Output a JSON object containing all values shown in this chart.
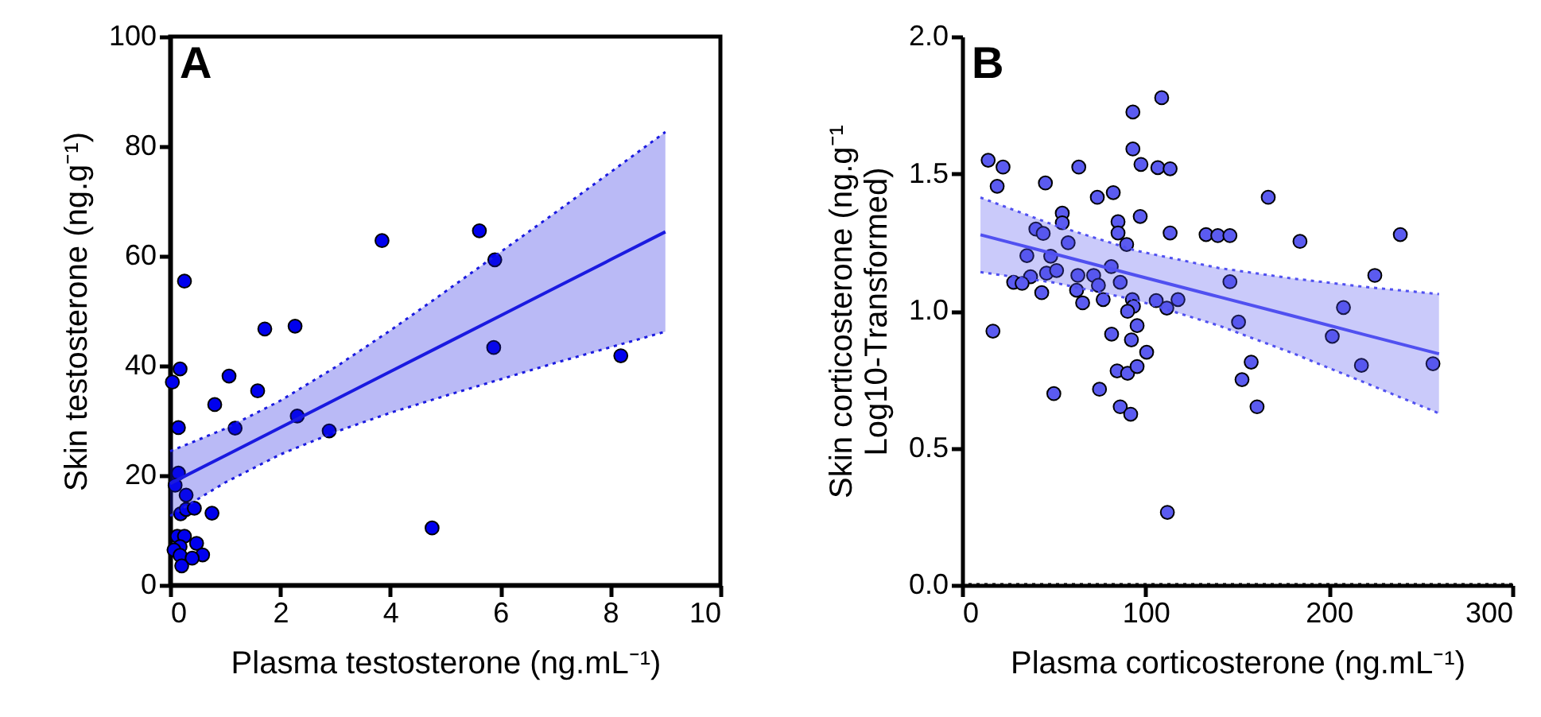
{
  "chart_data": [
    {
      "type": "scatter",
      "xlabel": "Plasma testosterone (ng.mL⁻¹)",
      "ylabel": "Skin testosterone (ng.g⁻¹)",
      "annotations": [
        "A"
      ],
      "xlim": [
        0,
        10
      ],
      "xticks": [
        0,
        2,
        4,
        6,
        8,
        10
      ],
      "ylim": [
        0,
        100
      ],
      "yticks": [
        0,
        20,
        40,
        60,
        80,
        100
      ],
      "grid": false,
      "legend": false,
      "series": [
        {
          "type": "scatter",
          "marker": "circle",
          "color": "#0000ee",
          "x": [
            0.04,
            0.18,
            0.26,
            0.15,
            0.15,
            0.09,
            0.29,
            0.19,
            0.29,
            0.44,
            0.76,
            0.13,
            0.26,
            0.18,
            0.07,
            0.18,
            0.48,
            0.59,
            0.4,
            0.21,
            0.81,
            1.07,
            1.18,
            1.59,
            1.72,
            2.27,
            2.31,
            2.89,
            3.85,
            4.76,
            5.62,
            5.9,
            5.88,
            8.19
          ],
          "values": [
            37.0,
            39.4,
            55.4,
            28.7,
            20.4,
            18.2,
            16.4,
            13.0,
            13.8,
            14.0,
            13.1,
            8.9,
            8.9,
            7.0,
            6.4,
            5.4,
            7.6,
            5.5,
            4.9,
            3.5,
            32.9,
            38.1,
            28.6,
            35.4,
            46.7,
            47.2,
            30.8,
            28.1,
            62.8,
            10.4,
            64.6,
            59.3,
            43.3,
            41.8
          ]
        },
        {
          "type": "line",
          "marker": "none",
          "line_style": "solid",
          "color": "#1a1ae0",
          "x": [
            0,
            1,
            2,
            3,
            4,
            5,
            6,
            7,
            8,
            9
          ],
          "values": [
            18.5,
            23.6,
            28.7,
            33.8,
            38.9,
            44.0,
            49.1,
            54.2,
            59.3,
            64.4
          ],
          "lower": [
            12.6,
            18.7,
            23.8,
            27.9,
            31.4,
            34.5,
            37.5,
            40.5,
            43.35,
            46.2
          ],
          "upper": [
            24.4,
            28.5,
            33.6,
            39.7,
            46.4,
            53.5,
            60.7,
            67.9,
            75.25,
            82.6
          ]
        },
        {
          "type": "line",
          "marker": "none",
          "line_style": "dotted",
          "color": "#1a1ae0",
          "x": [
            0,
            1,
            2,
            3,
            4,
            5,
            6,
            7,
            8,
            9
          ],
          "values": [
            12.6,
            18.7,
            23.8,
            27.9,
            31.4,
            34.5,
            37.5,
            40.5,
            43.35,
            46.2
          ]
        },
        {
          "type": "line",
          "marker": "none",
          "line_style": "dotted",
          "color": "#1a1ae0",
          "x": [
            0,
            1,
            2,
            3,
            4,
            5,
            6,
            7,
            8,
            9
          ],
          "values": [
            24.4,
            28.5,
            33.6,
            39.7,
            46.4,
            53.5,
            60.7,
            67.9,
            75.25,
            82.6
          ]
        }
      ]
    },
    {
      "type": "scatter",
      "xlabel": "Plasma corticosterone (ng.mL⁻¹)",
      "ylabel": "Skin corticosterone (ng.g⁻¹\nLog10-Transformed)",
      "annotations": [
        "B"
      ],
      "xlim": [
        0,
        300
      ],
      "xticks": [
        0,
        100,
        200,
        300
      ],
      "ylim": [
        0,
        2
      ],
      "yticks": [
        {
          "value": 0,
          "label": "0.0"
        },
        {
          "value": 0.5,
          "label": "0.5"
        },
        {
          "value": 1,
          "label": "1.0"
        },
        {
          "value": 1.5,
          "label": "1.5"
        },
        {
          "value": 2,
          "label": "2.0"
        }
      ],
      "grid": false,
      "legend": false,
      "ref_lines": [
        {
          "axis": "y",
          "value": 0,
          "color": "#000000",
          "line_style": "dotted"
        }
      ],
      "series": [
        {
          "type": "scatter",
          "marker": "circle",
          "color": "#5b5bf0",
          "x": [
            14.2,
            22.3,
            19.1,
            16.8,
            45.4,
            63.6,
            93.1,
            97.5,
            106.7,
            113.4,
            73.7,
            82.4,
            54.6,
            54.6,
            85.0,
            85.0,
            97.1,
            113.4,
            166.9,
            133.0,
            139.4,
            146.0,
            184.2,
            238.9,
            40.2,
            44.2,
            57.8,
            89.7,
            35.3,
            48.3,
            46.0,
            51.5,
            37.3,
            28.1,
            32.7,
            43.4,
            63.1,
            71.7,
            62.4,
            74.3,
            81.3,
            86.2,
            65.7,
            76.9,
            92.8,
            93.4,
            90.2,
            105.8,
            111.6,
            117.7,
            146.0,
            95.4,
            81.5,
            92.3,
            100.6,
            150.7,
            84.5,
            90.2,
            95.4,
            74.9,
            50.0,
            86.2,
            91.9,
            157.6,
            152.6,
            160.8,
            207.9,
            201.8,
            217.7,
            225.0,
            256.7,
            111.9,
            93.1,
            108.8
          ],
          "values": [
            1.549,
            1.524,
            1.454,
            0.926,
            1.466,
            1.524,
            1.59,
            1.534,
            1.522,
            1.518,
            1.414,
            1.431,
            1.356,
            1.321,
            1.325,
            1.284,
            1.344,
            1.284,
            1.414,
            1.278,
            1.274,
            1.274,
            1.253,
            1.278,
            1.298,
            1.282,
            1.248,
            1.242,
            1.201,
            1.199,
            1.137,
            1.147,
            1.124,
            1.104,
            1.1,
            1.066,
            1.129,
            1.129,
            1.075,
            1.093,
            1.161,
            1.104,
            1.029,
            1.041,
            1.041,
            1.016,
            0.998,
            1.037,
            1.01,
            1.041,
            1.106,
            0.946,
            0.915,
            0.894,
            0.849,
            0.959,
            0.781,
            0.772,
            0.797,
            0.714,
            0.698,
            0.65,
            0.623,
            0.813,
            0.749,
            0.65,
            1.012,
            0.907,
            0.801,
            1.129,
            0.807,
            0.265,
            1.725,
            1.777
          ]
        },
        {
          "type": "line",
          "marker": "none",
          "line_style": "solid",
          "color": "#5050f0",
          "x": [
            10,
            50,
            95,
            140,
            180,
            220,
            260
          ],
          "values": [
            1.277,
            1.208,
            1.129,
            1.051,
            0.982,
            0.912,
            0.843
          ],
          "lower": [
            1.141,
            1.103,
            1.039,
            0.946,
            0.846,
            0.737,
            0.626
          ],
          "upper": [
            1.413,
            1.313,
            1.219,
            1.156,
            1.118,
            1.087,
            1.061
          ]
        },
        {
          "type": "line",
          "marker": "none",
          "line_style": "dotted",
          "color": "#5050f0",
          "x": [
            10,
            50,
            95,
            140,
            180,
            220,
            260
          ],
          "values": [
            1.141,
            1.103,
            1.039,
            0.946,
            0.846,
            0.737,
            0.626
          ]
        },
        {
          "type": "line",
          "marker": "none",
          "line_style": "dotted",
          "color": "#5050f0",
          "x": [
            10,
            50,
            95,
            140,
            180,
            220,
            260
          ],
          "values": [
            1.413,
            1.313,
            1.219,
            1.156,
            1.118,
            1.087,
            1.061
          ]
        }
      ]
    }
  ]
}
